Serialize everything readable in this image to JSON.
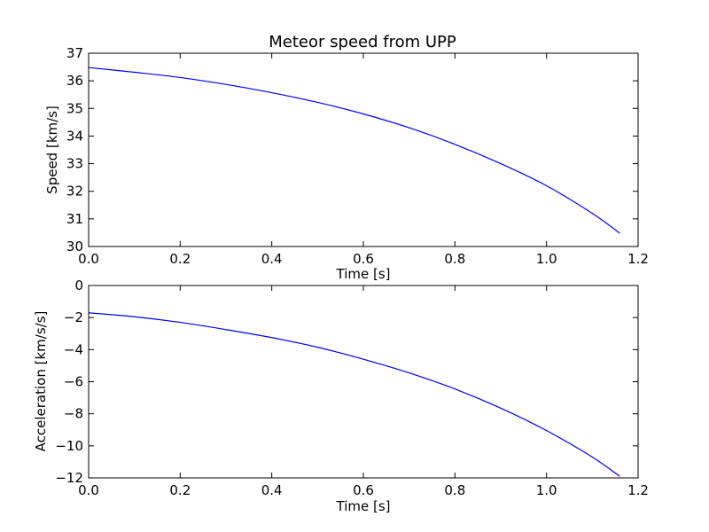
{
  "chart_data": [
    {
      "type": "line",
      "title": "Meteor speed from  UPP",
      "xlabel": "Time [s]",
      "ylabel": "Speed [km/s]",
      "xlim": [
        0.0,
        1.2
      ],
      "ylim": [
        30,
        37
      ],
      "xticks": [
        "0.0",
        "0.2",
        "0.4",
        "0.6",
        "0.8",
        "1.0",
        "1.2"
      ],
      "yticks": [
        "30",
        "31",
        "32",
        "33",
        "34",
        "35",
        "36",
        "37"
      ],
      "grid": false,
      "color": "#0000ff",
      "x": [
        0.0,
        0.1,
        0.2,
        0.3,
        0.4,
        0.5,
        0.6,
        0.7,
        0.8,
        0.9,
        1.0,
        1.1,
        1.16
      ],
      "y": [
        36.48,
        36.31,
        36.12,
        35.87,
        35.57,
        35.22,
        34.8,
        34.3,
        33.7,
        33.0,
        32.2,
        31.2,
        30.48
      ]
    },
    {
      "type": "line",
      "title": "",
      "xlabel": "Time [s]",
      "ylabel": "Acceleration [km/s/s]",
      "xlim": [
        0.0,
        1.2
      ],
      "ylim": [
        -12,
        0
      ],
      "xticks": [
        "0.0",
        "0.2",
        "0.4",
        "0.6",
        "0.8",
        "1.0",
        "1.2"
      ],
      "yticks": [
        "0",
        "−2",
        "−4",
        "−6",
        "−8",
        "−10",
        "−12"
      ],
      "grid": false,
      "color": "#0000ff",
      "x": [
        0.0,
        0.1,
        0.2,
        0.3,
        0.4,
        0.5,
        0.6,
        0.7,
        0.8,
        0.9,
        1.0,
        1.1,
        1.16
      ],
      "y": [
        -1.7,
        -1.95,
        -2.3,
        -2.75,
        -3.25,
        -3.85,
        -4.6,
        -5.45,
        -6.45,
        -7.65,
        -9.05,
        -10.7,
        -11.9
      ]
    }
  ]
}
